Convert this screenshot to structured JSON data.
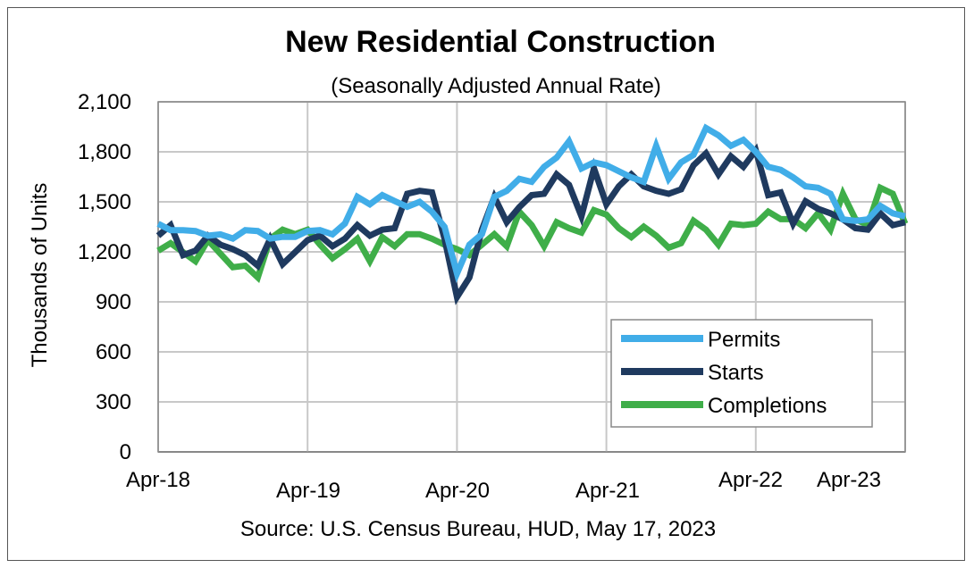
{
  "chart_data": {
    "type": "line",
    "title": "New Residential  Construction",
    "subtitle": "(Seasonally Adjusted Annual Rate)",
    "ylabel": "Thousands of Units",
    "xlabel": "",
    "source": "Source:  U.S. Census Bureau, HUD, May 17, 2023",
    "ylim": [
      0,
      2100
    ],
    "yticks": [
      "0",
      "300",
      "600",
      "900",
      "1,200",
      "1,500",
      "1,800",
      "2,100"
    ],
    "ytick_values": [
      0,
      300,
      600,
      900,
      1200,
      1500,
      1800,
      2100
    ],
    "xtick_labels": [
      "Apr-18",
      "Apr-19",
      "Apr-20",
      "Apr-21",
      "Apr-22",
      "Apr-23"
    ],
    "x_start": "Apr-18",
    "x_end": "Apr-23",
    "grid": true,
    "legend_position": "bottom-right",
    "series": [
      {
        "name": "Permits",
        "color": "#41ade8",
        "values": [
          1369,
          1330,
          1330,
          1325,
          1297,
          1305,
          1280,
          1330,
          1325,
          1280,
          1290,
          1290,
          1325,
          1330,
          1305,
          1370,
          1530,
          1485,
          1540,
          1505,
          1470,
          1500,
          1440,
          1350,
          1070,
          1243,
          1306,
          1530,
          1566,
          1638,
          1620,
          1710,
          1765,
          1863,
          1700,
          1737,
          1720,
          1683,
          1647,
          1620,
          1836,
          1638,
          1737,
          1782,
          1943,
          1899,
          1836,
          1872,
          1800,
          1710,
          1692,
          1647,
          1593,
          1584,
          1548,
          1395,
          1386,
          1395,
          1476,
          1431,
          1413
        ]
      },
      {
        "name": "Starts",
        "color": "#1f3a5f",
        "values": [
          1297,
          1360,
          1180,
          1207,
          1297,
          1243,
          1216,
          1180,
          1117,
          1279,
          1126,
          1198,
          1270,
          1297,
          1234,
          1279,
          1360,
          1297,
          1333,
          1342,
          1548,
          1566,
          1557,
          1279,
          929,
          1046,
          1333,
          1530,
          1378,
          1468,
          1540,
          1548,
          1665,
          1602,
          1413,
          1701,
          1485,
          1593,
          1665,
          1593,
          1566,
          1548,
          1575,
          1719,
          1791,
          1665,
          1773,
          1710,
          1809,
          1540,
          1557,
          1369,
          1503,
          1458,
          1431,
          1395,
          1342,
          1333,
          1431,
          1360,
          1378
        ]
      },
      {
        "name": "Completions",
        "color": "#3fae49",
        "values": [
          1207,
          1252,
          1198,
          1144,
          1270,
          1189,
          1108,
          1117,
          1046,
          1279,
          1333,
          1306,
          1333,
          1243,
          1162,
          1216,
          1279,
          1144,
          1288,
          1234,
          1306,
          1306,
          1279,
          1243,
          1216,
          1180,
          1243,
          1306,
          1234,
          1441,
          1360,
          1234,
          1378,
          1342,
          1315,
          1450,
          1423,
          1342,
          1288,
          1351,
          1297,
          1225,
          1252,
          1387,
          1333,
          1243,
          1369,
          1360,
          1369,
          1441,
          1396,
          1396,
          1342,
          1432,
          1333,
          1548,
          1396,
          1360,
          1584,
          1548,
          1369
        ]
      }
    ]
  }
}
